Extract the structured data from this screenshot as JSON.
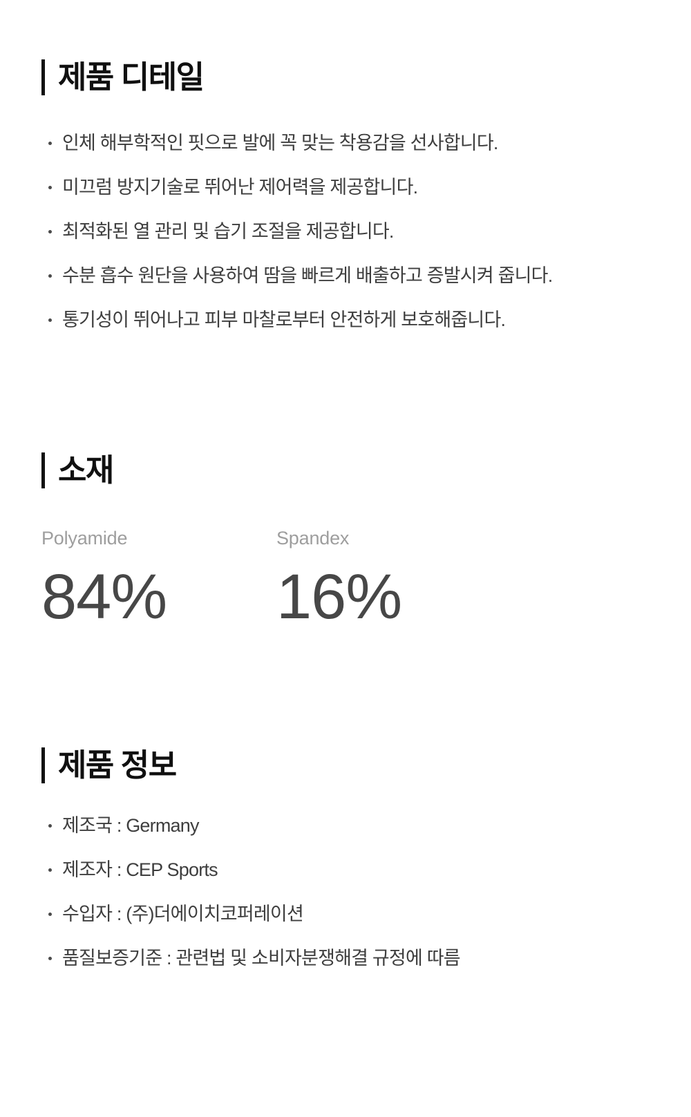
{
  "colors": {
    "background": "#ffffff",
    "heading": "#101010",
    "heading_bar": "#111111",
    "body_text": "#3e3e3e",
    "muted_label": "#9e9e9e",
    "percent_text": "#474747"
  },
  "sections": {
    "details": {
      "title": "제품 디테일",
      "bullets": [
        "인체 해부학적인 핏으로 발에 꼭 맞는 착용감을 선사합니다.",
        "미끄럼 방지기술로 뛰어난 제어력을 제공합니다.",
        "최적화된 열 관리 및 습기 조절을 제공합니다.",
        "수분 흡수 원단을 사용하여 땀을 빠르게 배출하고 증발시켜 줍니다.",
        "통기성이 뛰어나고 피부 마찰로부터 안전하게 보호해줍니다."
      ]
    },
    "material": {
      "title": "소재",
      "items": [
        {
          "name": "Polyamide",
          "percent": "84%"
        },
        {
          "name": "Spandex",
          "percent": "16%"
        }
      ]
    },
    "info": {
      "title": "제품 정보",
      "bullets": [
        "제조국 : Germany",
        "제조자 : CEP Sports",
        "수입자 : (주)더에이치코퍼레이션",
        "품질보증기준 : 관련법 및 소비자분쟁해결 규정에 따름"
      ]
    }
  }
}
